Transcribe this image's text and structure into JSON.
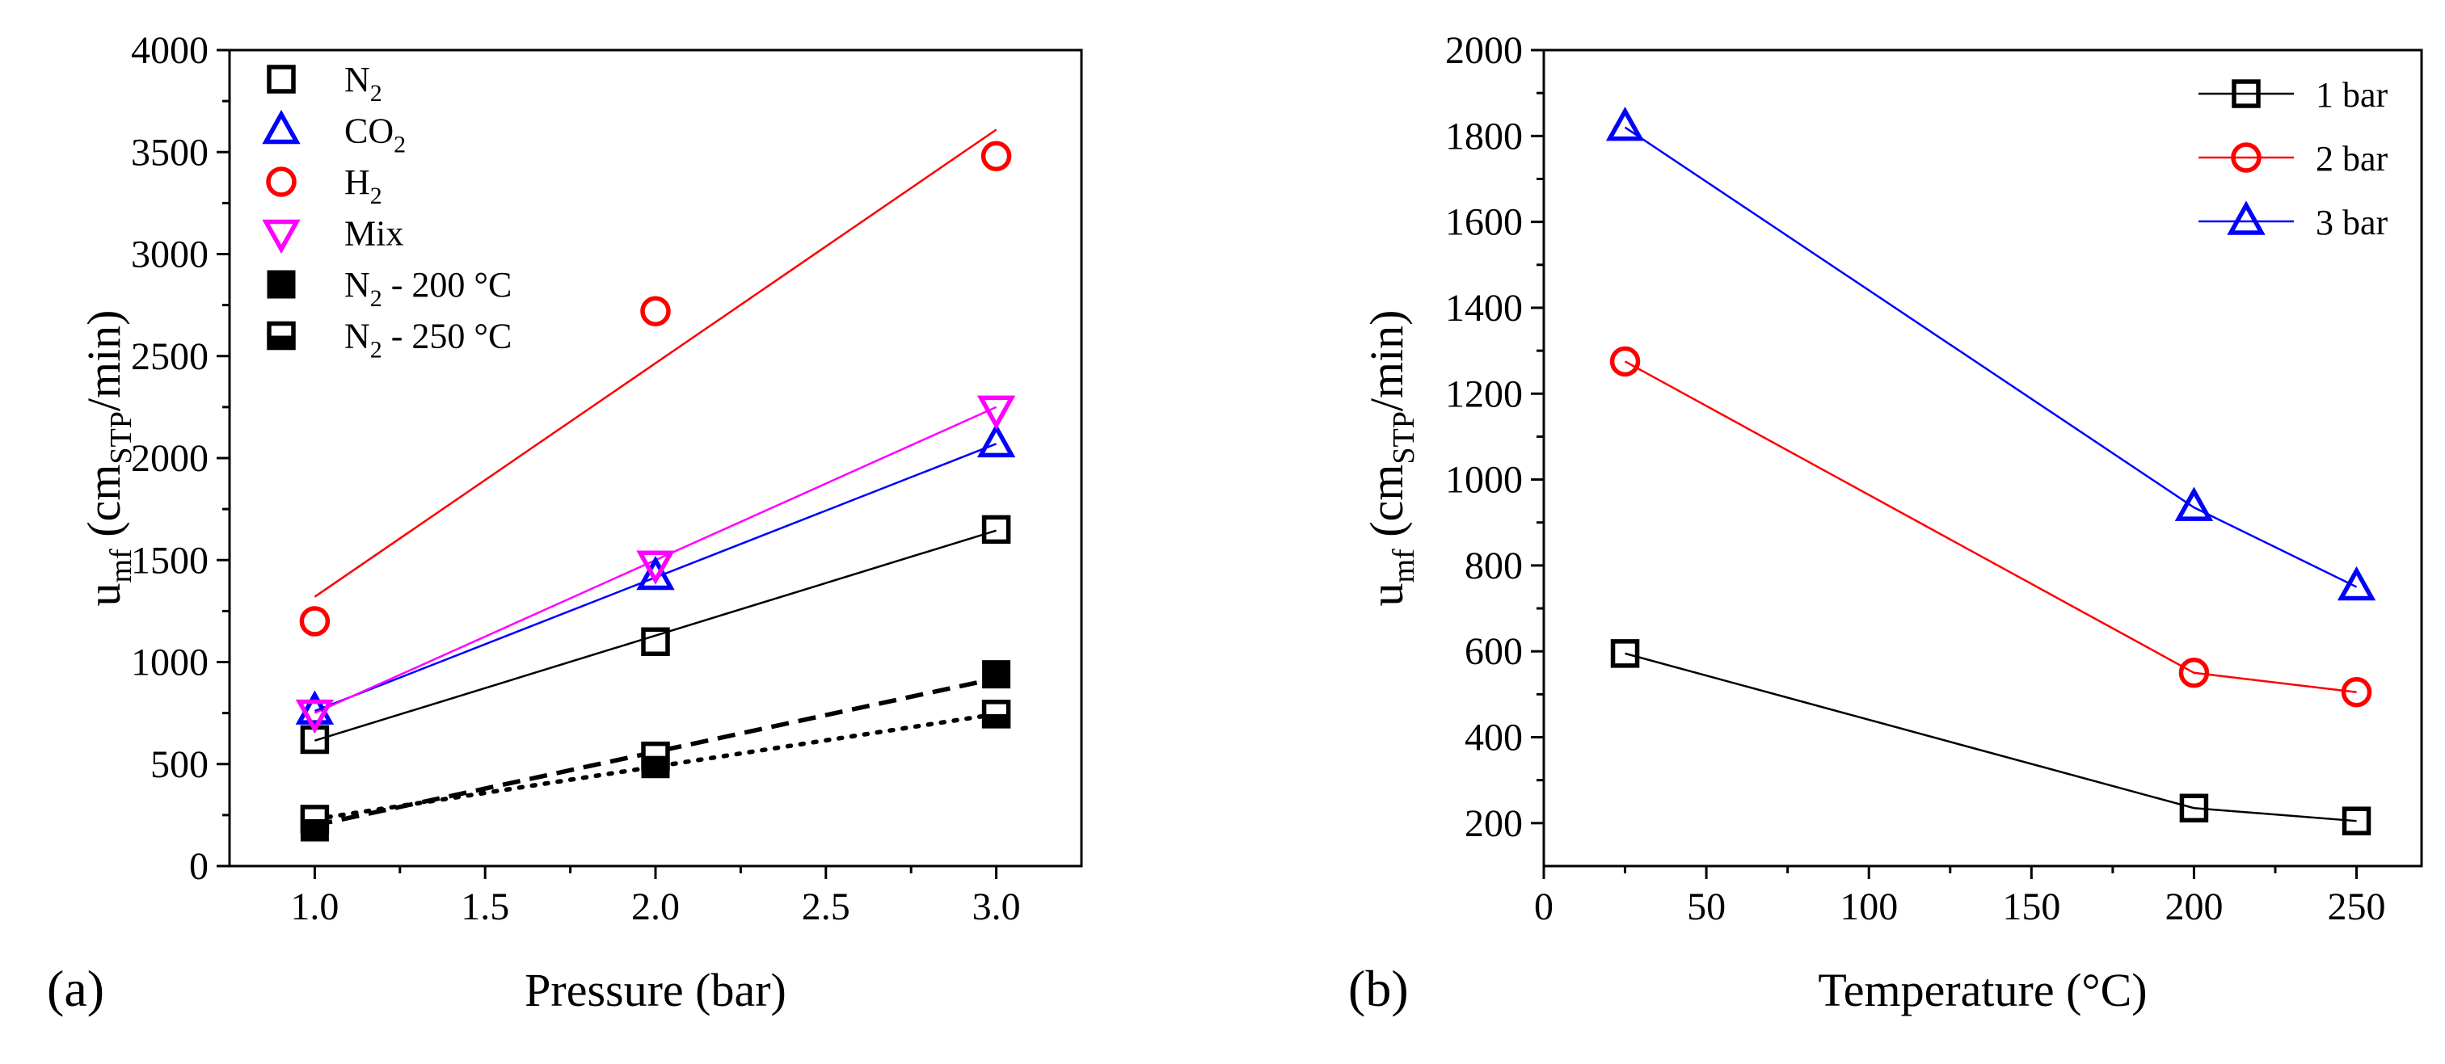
{
  "chart_data": [
    {
      "panel_label": "(a)",
      "type": "scatter",
      "xlabel": "Pressure (bar)",
      "ylabel": {
        "main": "u",
        "sub1": "mf",
        "paren": " (cm",
        "sub2": "STP",
        "tail": "/min)"
      },
      "xlim": [
        0.75,
        3.25
      ],
      "ylim": [
        0,
        4000
      ],
      "xticks": [
        1.0,
        1.5,
        2.0,
        2.5,
        3.0
      ],
      "xtick_labels": [
        "1.0",
        "1.5",
        "2.0",
        "2.5",
        "3.0"
      ],
      "yticks": [
        0,
        500,
        1000,
        1500,
        2000,
        2500,
        3000,
        3500,
        4000
      ],
      "ytick_labels": [
        "0",
        "500",
        "1000",
        "1500",
        "2000",
        "2500",
        "3000",
        "3500",
        "4000"
      ],
      "legend_position": "top-left",
      "series": [
        {
          "name": "N2",
          "label": {
            "base": "N",
            "sub": "2",
            "tail": ""
          },
          "marker": "square-open",
          "color": "#000000",
          "x": [
            1.0,
            2.0,
            3.0
          ],
          "y": [
            620,
            1100,
            1650
          ],
          "fit": {
            "x": [
              1.0,
              3.0
            ],
            "y": [
              615,
              1645
            ],
            "style": "solid"
          }
        },
        {
          "name": "CO2",
          "label": {
            "base": "CO",
            "sub": "2",
            "tail": ""
          },
          "marker": "triangle-up-open",
          "color": "#0000ff",
          "x": [
            1.0,
            2.0,
            3.0
          ],
          "y": [
            760,
            1420,
            2070
          ],
          "fit": {
            "x": [
              1.0,
              3.0
            ],
            "y": [
              760,
              2070
            ],
            "style": "solid"
          }
        },
        {
          "name": "H2",
          "label": {
            "base": "H",
            "sub": "2",
            "tail": ""
          },
          "marker": "circle-open",
          "color": "#ff0000",
          "x": [
            1.0,
            2.0,
            3.0
          ],
          "y": [
            1200,
            2720,
            3480
          ],
          "fit": {
            "x": [
              1.0,
              3.0
            ],
            "y": [
              1320,
              3610
            ],
            "style": "solid"
          }
        },
        {
          "name": "Mix",
          "label": {
            "base": "Mix",
            "sub": "",
            "tail": ""
          },
          "marker": "triangle-down-open",
          "color": "#ff00ff",
          "x": [
            1.0,
            2.0,
            3.0
          ],
          "y": [
            750,
            1480,
            2240
          ],
          "fit": {
            "x": [
              1.0,
              3.0
            ],
            "y": [
              750,
              2250
            ],
            "style": "solid"
          }
        },
        {
          "name": "N2 - 200 °C",
          "label": {
            "base": "N",
            "sub": "2",
            "tail": " - 200 °C"
          },
          "marker": "square-filled",
          "color": "#000000",
          "x": [
            1.0,
            2.0,
            3.0
          ],
          "y": [
            190,
            500,
            940
          ],
          "fit": {
            "x": [
              1.0,
              3.0
            ],
            "y": [
              200,
              920
            ],
            "style": "dashed"
          }
        },
        {
          "name": "N2 - 250 °C",
          "label": {
            "base": "N",
            "sub": "2",
            "tail": " - 250 °C"
          },
          "marker": "square-half",
          "color": "#000000",
          "x": [
            1.0,
            2.0,
            3.0
          ],
          "y": [
            230,
            540,
            745
          ],
          "fit": {
            "x": [
              1.0,
              3.0
            ],
            "y": [
              230,
              745
            ],
            "style": "dotted"
          }
        }
      ]
    },
    {
      "panel_label": "(b)",
      "type": "line",
      "xlabel": "Temperature (°C)",
      "ylabel": {
        "main": "u",
        "sub1": "mf",
        "paren": " (cm",
        "sub2": "STP",
        "tail": "/min)"
      },
      "xlim": [
        0,
        270
      ],
      "ylim": [
        100,
        2000
      ],
      "xticks": [
        0,
        50,
        100,
        150,
        200,
        250
      ],
      "xtick_labels": [
        "0",
        "50",
        "100",
        "150",
        "200",
        "250"
      ],
      "yticks": [
        200,
        400,
        600,
        800,
        1000,
        1200,
        1400,
        1600,
        1800,
        2000
      ],
      "ytick_labels": [
        "200",
        "400",
        "600",
        "800",
        "1000",
        "1200",
        "1400",
        "1600",
        "1800",
        "2000"
      ],
      "legend_position": "top-right",
      "series": [
        {
          "name": "1 bar",
          "marker": "square-open",
          "color": "#000000",
          "x": [
            25,
            200,
            250
          ],
          "y": [
            595,
            235,
            205
          ]
        },
        {
          "name": "2 bar",
          "marker": "circle-open",
          "color": "#ff0000",
          "x": [
            25,
            200,
            250
          ],
          "y": [
            1275,
            550,
            505
          ]
        },
        {
          "name": "3 bar",
          "marker": "triangle-up-open",
          "color": "#0000ff",
          "x": [
            25,
            200,
            250
          ],
          "y": [
            1820,
            935,
            750
          ]
        }
      ]
    }
  ]
}
